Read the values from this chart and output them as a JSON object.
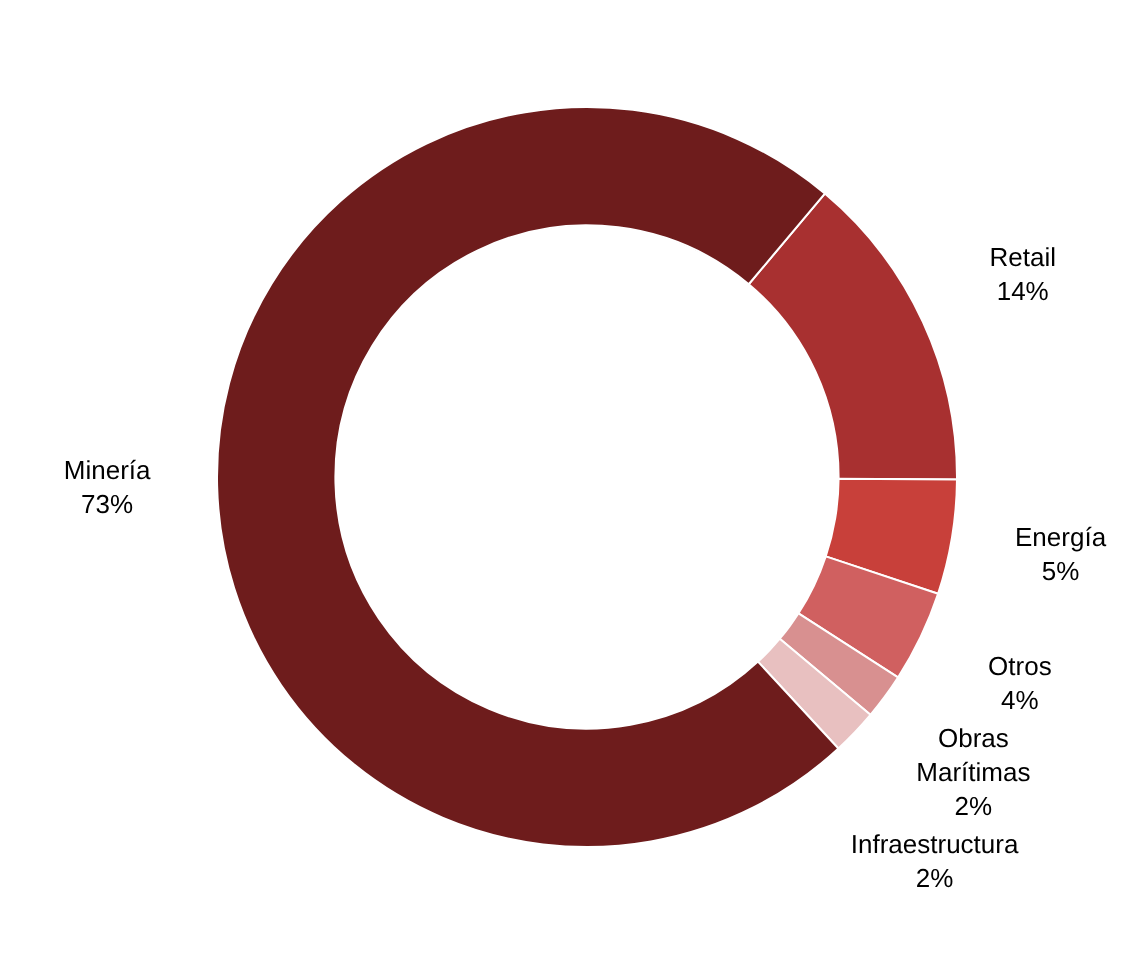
{
  "chart_data": {
    "type": "donut",
    "categories": [
      "Retail",
      "Energía",
      "Otros",
      "Obras Marítimas",
      "Infraestructura",
      "Minería"
    ],
    "values": [
      14,
      5,
      4,
      2,
      2,
      73
    ],
    "value_labels": [
      "14%",
      "5%",
      "4%",
      "2%",
      "2%",
      "73%"
    ],
    "colors": [
      "#a83030",
      "#c8403a",
      "#d06060",
      "#d89090",
      "#e8c0c0",
      "#6e1c1c"
    ],
    "legend": false
  }
}
